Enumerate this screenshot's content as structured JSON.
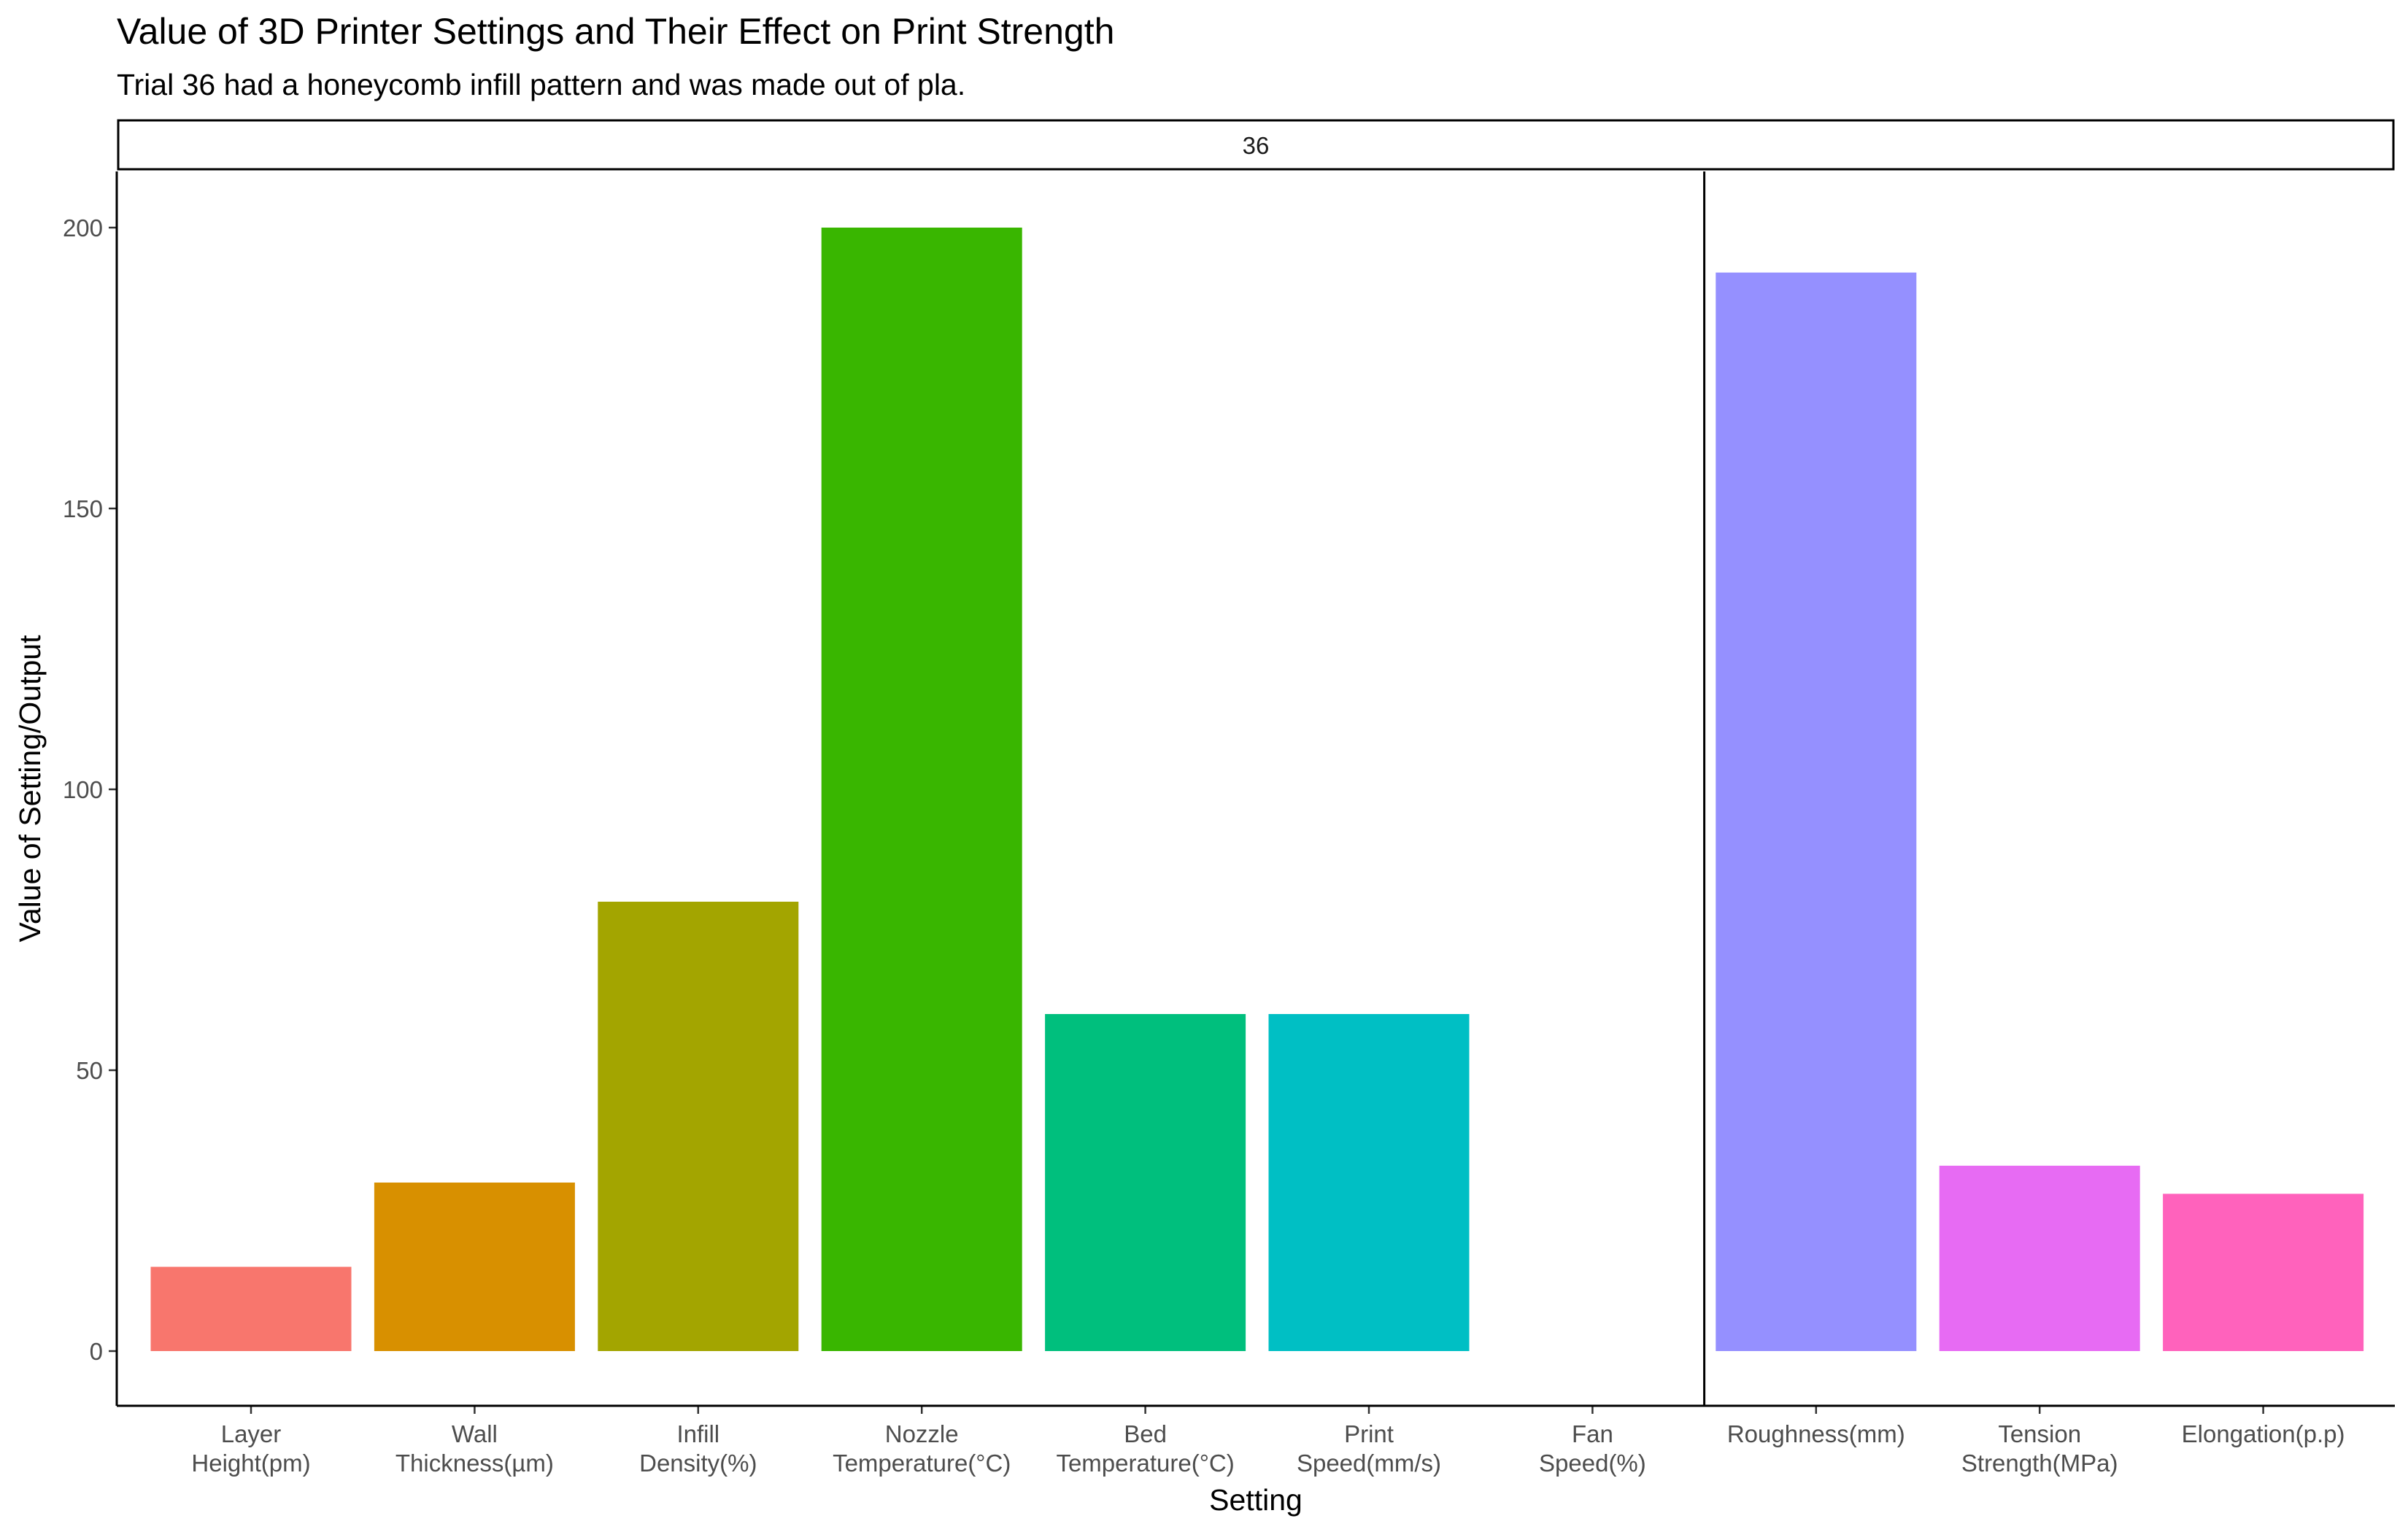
{
  "chart_data": {
    "type": "bar",
    "title": "Value of 3D Printer Settings and Their Effect on Print Strength",
    "subtitle": "Trial 36 had a honeycomb infill pattern and was made out of pla.",
    "facet_label": "36",
    "xlabel": "Setting",
    "ylabel": "Value of Setting/Output",
    "ylim": [
      0,
      200
    ],
    "yticks": [
      0,
      50,
      100,
      150,
      200
    ],
    "grid": false,
    "legend": "none",
    "categories": [
      "Layer Height(pm)",
      "Wall Thickness(µm)",
      "Infill Density(%)",
      "Nozzle Temperature(°C)",
      "Bed Temperature(°C)",
      "Print Speed(mm/s)",
      "Fan Speed(%)",
      "Roughness(mm)",
      "Tension Strength(MPa)",
      "Elongation(p.p)"
    ],
    "category_label_lines": [
      [
        "Layer",
        "Height(pm)"
      ],
      [
        "Wall",
        "Thickness(µm)"
      ],
      [
        "Infill",
        "Density(%)"
      ],
      [
        "Nozzle",
        "Temperature(°C)"
      ],
      [
        "Bed",
        "Temperature(°C)"
      ],
      [
        "Print",
        "Speed(mm/s)"
      ],
      [
        "Fan",
        "Speed(%)"
      ],
      [
        "Roughness(mm)"
      ],
      [
        "Tension",
        "Strength(MPa)"
      ],
      [
        "Elongation(p.p)"
      ]
    ],
    "values": [
      15,
      30,
      80,
      200,
      60,
      60,
      0,
      192,
      33,
      28
    ],
    "colors": [
      "#F8766D",
      "#D89000",
      "#A3A500",
      "#39B600",
      "#00BF7D",
      "#00BFC4",
      "#00B0F6",
      "#9590FF",
      "#E76BF3",
      "#FF62BC"
    ],
    "divider_after_category": "Fan Speed(%)"
  }
}
